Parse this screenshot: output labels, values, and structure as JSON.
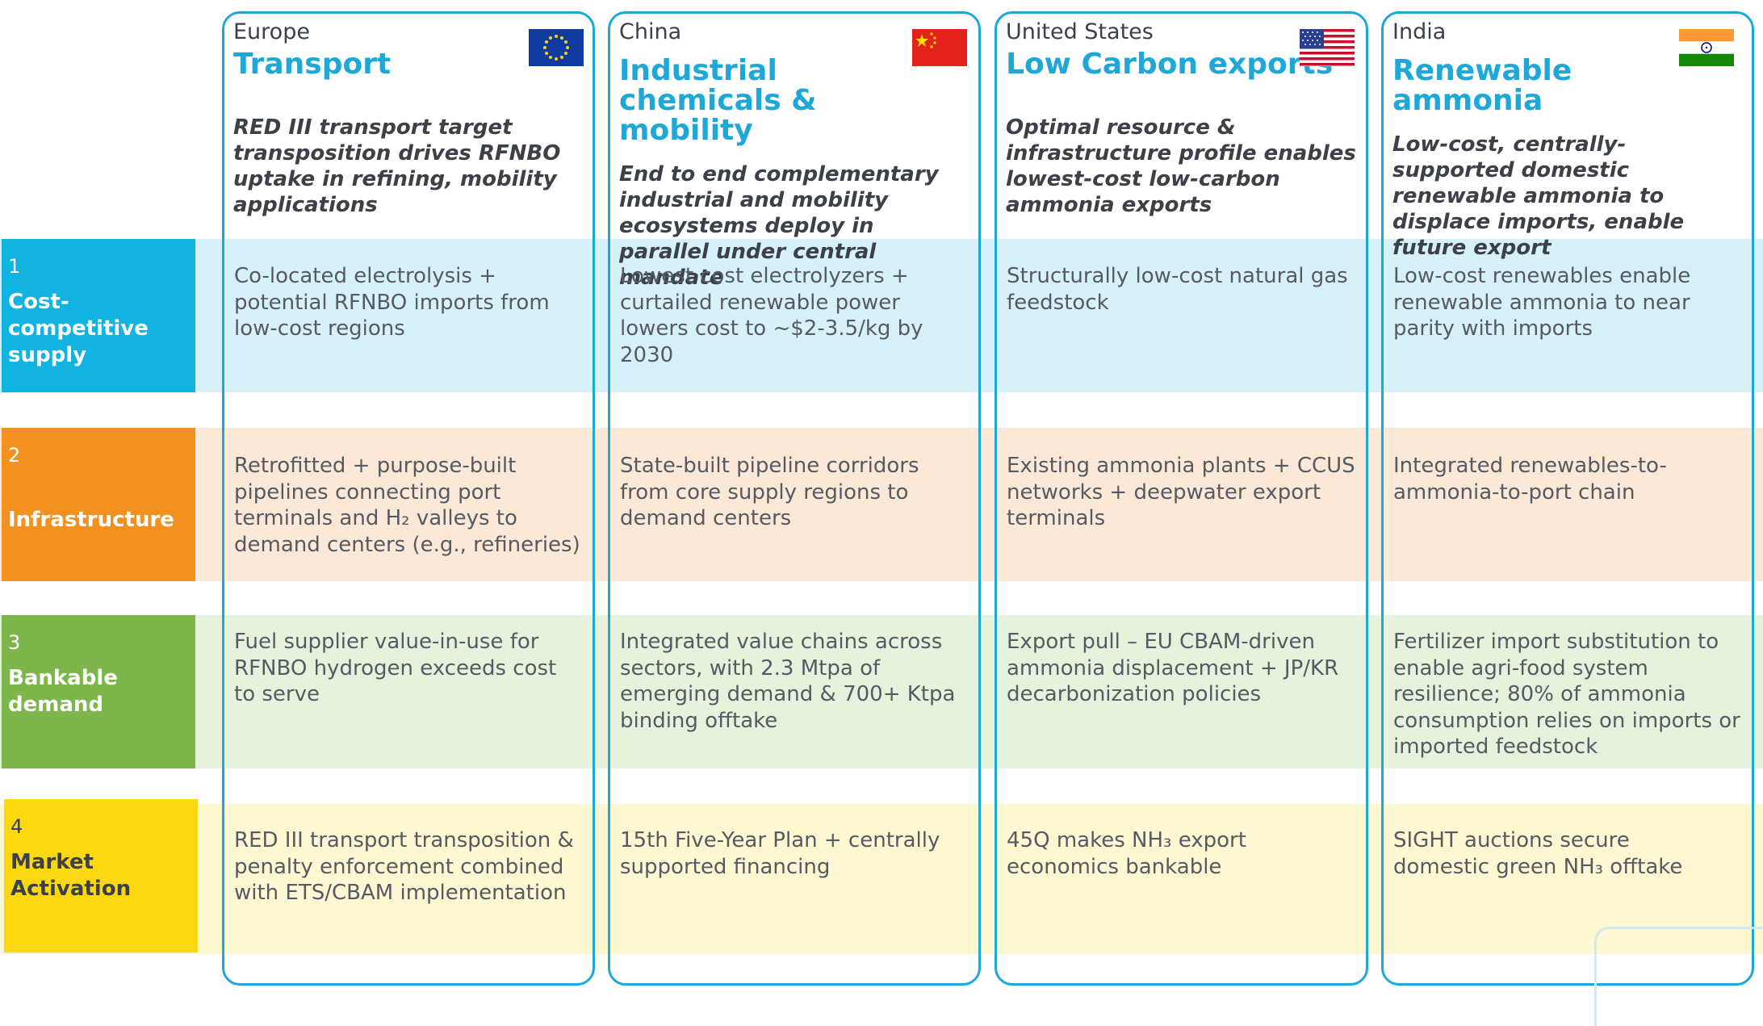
{
  "rows": [
    {
      "num": "1",
      "label": "Cost-competitive supply",
      "color": "#12b2e1"
    },
    {
      "num": "2",
      "label": "Infrastructure",
      "color": "#f39120"
    },
    {
      "num": "3",
      "label": "Bankable demand",
      "color": "#7db64a"
    },
    {
      "num": "4",
      "label": "Market Activation",
      "color": "#fbd80f"
    }
  ],
  "columns": [
    {
      "region": "Europe",
      "focus": "Transport",
      "flag": "eu-flag-icon",
      "description": "RED III transport target transposition drives RFNBO uptake in refining, mobility applications",
      "cells": [
        "Co-located electrolysis + potential RFNBO imports from low-cost regions",
        "Retrofitted + purpose-built pipelines connecting port terminals and H₂ valleys to demand centers (e.g., refineries)",
        "Fuel supplier value-in-use  for RFNBO hydrogen exceeds cost to serve",
        "RED III transport transposition & penalty enforcement combined with ETS/CBAM implementation"
      ]
    },
    {
      "region": "China",
      "focus": "Industrial chemicals & mobility",
      "flag": "china-flag-icon",
      "description": "End to end complementary industrial and mobility ecosystems deploy in parallel under central mandate",
      "cells": [
        "Lowest cost electrolyzers + curtailed renewable power lowers cost to ~$2-3.5/kg by 2030",
        "State-built pipeline corridors from core supply regions to demand centers",
        "Integrated value chains across sectors, with 2.3 Mtpa of emerging demand & 700+ Ktpa binding offtake",
        "15th Five-Year Plan + centrally supported financing"
      ]
    },
    {
      "region": "United States",
      "focus": "Low Carbon exports",
      "flag": "us-flag-icon",
      "description": "Optimal resource &  infrastructure profile enables lowest-cost low-carbon ammonia exports",
      "cells": [
        "Structurally low-cost natural gas feedstock",
        "Existing ammonia plants + CCUS networks + deepwater export terminals",
        "Export pull – EU CBAM-driven ammonia displacement + JP/KR decarbonization policies",
        "45Q makes NH₃ export economics bankable"
      ]
    },
    {
      "region": "India",
      "focus": "Renewable ammonia",
      "flag": "india-flag-icon",
      "description": "Low-cost, centrally-supported domestic renewable ammonia  to displace imports, enable future export",
      "cells": [
        "Low-cost renewables enable renewable ammonia to near parity with imports",
        "Integrated renewables-to-ammonia-to-port chain",
        "Fertilizer import substitution to enable agri-food system resilience; 80% of ammonia consumption relies on imports or imported feedstock",
        "SIGHT auctions secure domestic green NH₃ offtake"
      ]
    }
  ],
  "colors": {
    "accent": "#1ea8d8",
    "heading_text": "#3c4048",
    "body_text": "#555a63"
  }
}
